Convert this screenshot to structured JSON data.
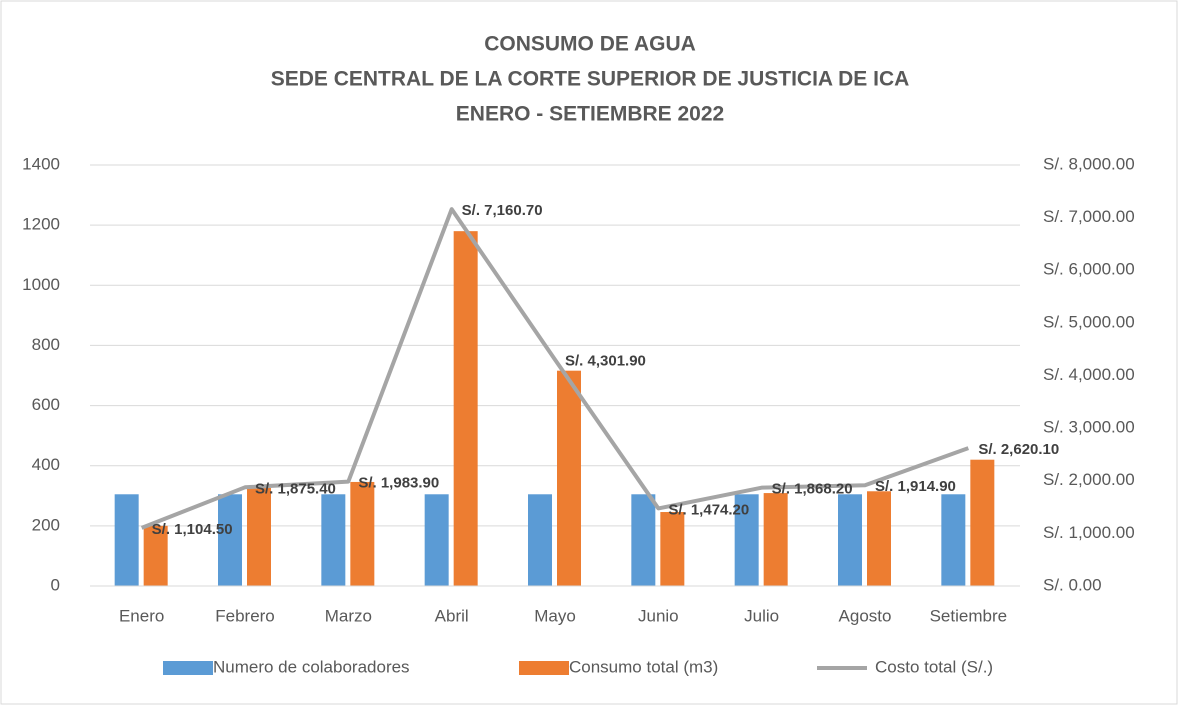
{
  "chart_data": {
    "type": "bar",
    "title": [
      "CONSUMO DE AGUA",
      "SEDE CENTRAL DE LA CORTE SUPERIOR DE JUSTICIA DE ICA",
      "ENERO - SETIEMBRE 2022"
    ],
    "categories": [
      "Enero",
      "Febrero",
      "Marzo",
      "Abril",
      "Mayo",
      "Junio",
      "Julio",
      "Agosto",
      "Setiembre"
    ],
    "series": [
      {
        "name": "Numero de colaboradores",
        "color": "#5b9bd5",
        "values": [
          305,
          305,
          305,
          305,
          305,
          305,
          305,
          305,
          305
        ]
      },
      {
        "name": "Consumo total (m3)",
        "color": "#ed7d31",
        "values": [
          200,
          326,
          346,
          1180,
          716,
          246,
          309,
          315,
          420
        ]
      },
      {
        "name": "Costo total (S/.)",
        "color": "#a5a5a5",
        "type": "line",
        "axis": "y2",
        "values": [
          1104.5,
          1875.4,
          1983.9,
          7160.7,
          4301.9,
          1474.2,
          1868.2,
          1914.9,
          2620.1
        ],
        "value_labels": [
          "S/. 1,104.50",
          "S/. 1,875.40",
          "S/. 1,983.90",
          "S/. 7,160.70",
          "S/. 4,301.90",
          "S/. 1,474.20",
          "S/. 1,868.20",
          "S/. 1,914.90",
          "S/. 2,620.10"
        ]
      }
    ],
    "ylim": [
      0,
      1400
    ],
    "yticks": [
      0,
      200,
      400,
      600,
      800,
      1000,
      1200,
      1400
    ],
    "y2lim": [
      0,
      8000
    ],
    "y2ticks": [
      {
        "value": 0,
        "label": "S/. 0.00"
      },
      {
        "value": 1000,
        "label": "S/. 1,000.00"
      },
      {
        "value": 2000,
        "label": "S/. 2,000.00"
      },
      {
        "value": 3000,
        "label": "S/. 3,000.00"
      },
      {
        "value": 4000,
        "label": "S/. 4,000.00"
      },
      {
        "value": 5000,
        "label": "S/. 5,000.00"
      },
      {
        "value": 6000,
        "label": "S/. 6,000.00"
      },
      {
        "value": 7000,
        "label": "S/. 7,000.00"
      },
      {
        "value": 8000,
        "label": "S/. 8,000.00"
      }
    ],
    "grid": true,
    "legend": "bottom"
  }
}
